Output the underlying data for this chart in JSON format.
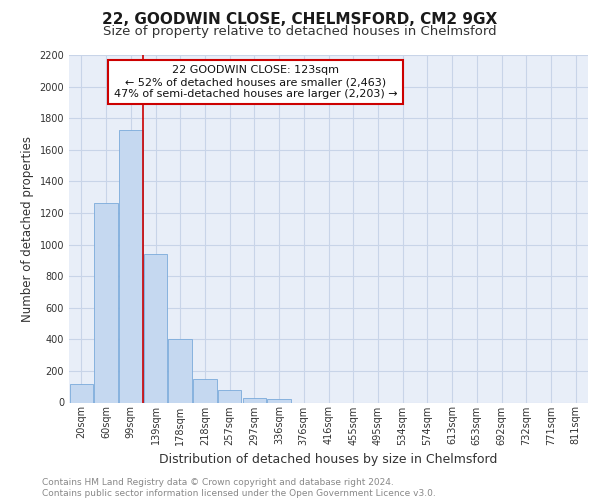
{
  "title": "22, GOODWIN CLOSE, CHELMSFORD, CM2 9GX",
  "subtitle": "Size of property relative to detached houses in Chelmsford",
  "xlabel": "Distribution of detached houses by size in Chelmsford",
  "ylabel": "Number of detached properties",
  "categories": [
    "20sqm",
    "60sqm",
    "99sqm",
    "139sqm",
    "178sqm",
    "218sqm",
    "257sqm",
    "297sqm",
    "336sqm",
    "376sqm",
    "416sqm",
    "455sqm",
    "495sqm",
    "534sqm",
    "574sqm",
    "613sqm",
    "653sqm",
    "692sqm",
    "732sqm",
    "771sqm",
    "811sqm"
  ],
  "values": [
    115,
    1265,
    1725,
    940,
    400,
    150,
    80,
    30,
    25,
    0,
    0,
    0,
    0,
    0,
    0,
    0,
    0,
    0,
    0,
    0,
    0
  ],
  "bar_color": "#c5d8f0",
  "bar_edge_color": "#7aaadb",
  "vline_color": "#cc0000",
  "vline_position": 2.5,
  "annotation_text": "22 GOODWIN CLOSE: 123sqm\n← 52% of detached houses are smaller (2,463)\n47% of semi-detached houses are larger (2,203) →",
  "annotation_box_facecolor": "#ffffff",
  "annotation_box_edgecolor": "#cc0000",
  "ylim": [
    0,
    2200
  ],
  "yticks": [
    0,
    200,
    400,
    600,
    800,
    1000,
    1200,
    1400,
    1600,
    1800,
    2000,
    2200
  ],
  "grid_color": "#c8d4e8",
  "background_color": "#e8eef8",
  "footer_text": "Contains HM Land Registry data © Crown copyright and database right 2024.\nContains public sector information licensed under the Open Government Licence v3.0.",
  "title_fontsize": 11,
  "subtitle_fontsize": 9.5,
  "xlabel_fontsize": 9,
  "ylabel_fontsize": 8.5,
  "tick_fontsize": 7,
  "annotation_fontsize": 8,
  "footer_fontsize": 6.5,
  "fig_width": 6.0,
  "fig_height": 5.0,
  "fig_dpi": 100
}
